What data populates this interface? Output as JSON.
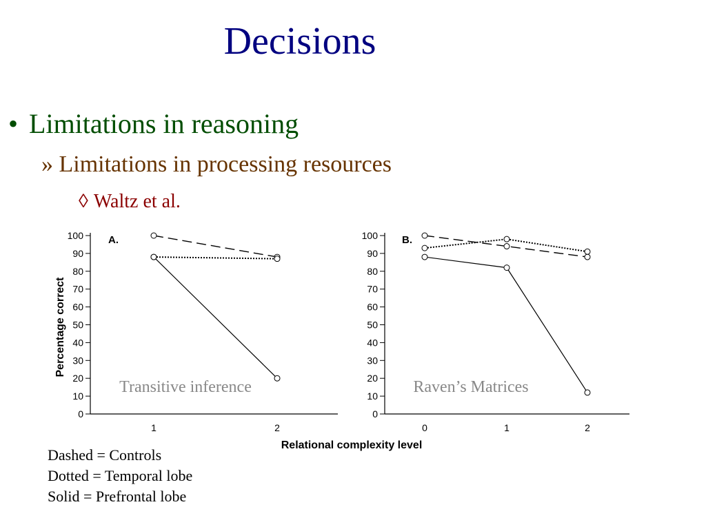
{
  "slide": {
    "title": "Decisions",
    "bullet_symbol": "•",
    "bullet1": "Limitations in reasoning",
    "bullet2": "» Limitations in processing resources",
    "bullet3_symbol": "◊",
    "bullet3": "Waltz et al."
  },
  "notes": [
    "Dashed = Controls",
    "Dotted = Temporal lobe",
    "Solid = Prefrontal lobe"
  ],
  "chart_data": [
    {
      "type": "line",
      "panel_label": "A.",
      "caption": "Transitive inference",
      "ylabel": "Percentage correct",
      "xlabel": "Relational complexity level",
      "categories": [
        "1",
        "2"
      ],
      "yticks": [
        0,
        10,
        20,
        30,
        40,
        50,
        60,
        70,
        80,
        90,
        100
      ],
      "ylim": [
        0,
        100
      ],
      "series": [
        {
          "style": "dashed",
          "values": [
            100,
            88
          ]
        },
        {
          "style": "dotted",
          "values": [
            88,
            87
          ]
        },
        {
          "style": "solid",
          "values": [
            88,
            20
          ]
        }
      ]
    },
    {
      "type": "line",
      "panel_label": "B.",
      "caption": "Raven’s Matrices",
      "xlabel": "Relational complexity level",
      "categories": [
        "0",
        "1",
        "2"
      ],
      "yticks": [
        0,
        10,
        20,
        30,
        40,
        50,
        60,
        70,
        80,
        90,
        100
      ],
      "ylim": [
        0,
        100
      ],
      "series": [
        {
          "style": "dashed",
          "values": [
            100,
            94,
            88
          ]
        },
        {
          "style": "dotted",
          "values": [
            93,
            98,
            91
          ]
        },
        {
          "style": "solid",
          "values": [
            88,
            82,
            12
          ]
        }
      ]
    }
  ]
}
